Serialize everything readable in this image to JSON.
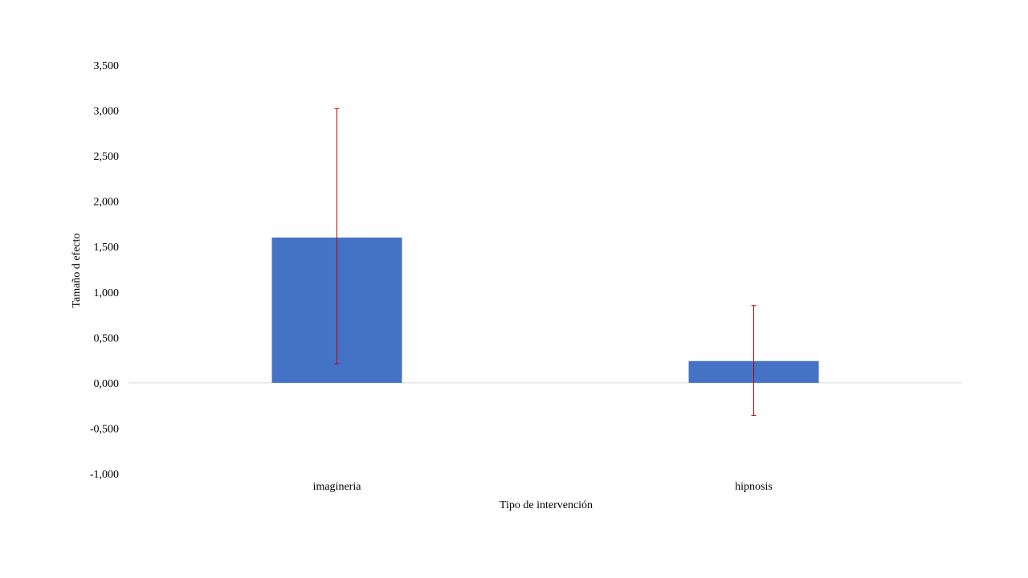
{
  "chart_data": {
    "type": "bar",
    "categories": [
      "imagineria",
      "hipnosis"
    ],
    "values": [
      1.6,
      0.24
    ],
    "error_bars": [
      {
        "low": 0.21,
        "high": 3.02
      },
      {
        "low": -0.36,
        "high": 0.85
      }
    ],
    "title": "",
    "xlabel": "Tipo  de intervención",
    "ylabel": "Tamaño  d efecto",
    "ylim": [
      -1.0,
      3.5
    ],
    "yticks": [
      -1.0,
      -0.5,
      0.0,
      0.5,
      1.0,
      1.5,
      2.0,
      2.5,
      3.0,
      3.5
    ],
    "ytick_labels": [
      "-1,000",
      "-0,500",
      "0,000",
      "0,500",
      "1,000",
      "1,500",
      "2,000",
      "2,500",
      "3,000",
      "3,500"
    ],
    "grid": false,
    "legend": "none",
    "colors": {
      "bar": "#4472c4",
      "error_bar": "#c00000",
      "zero_line": "#d9d9d9"
    }
  }
}
